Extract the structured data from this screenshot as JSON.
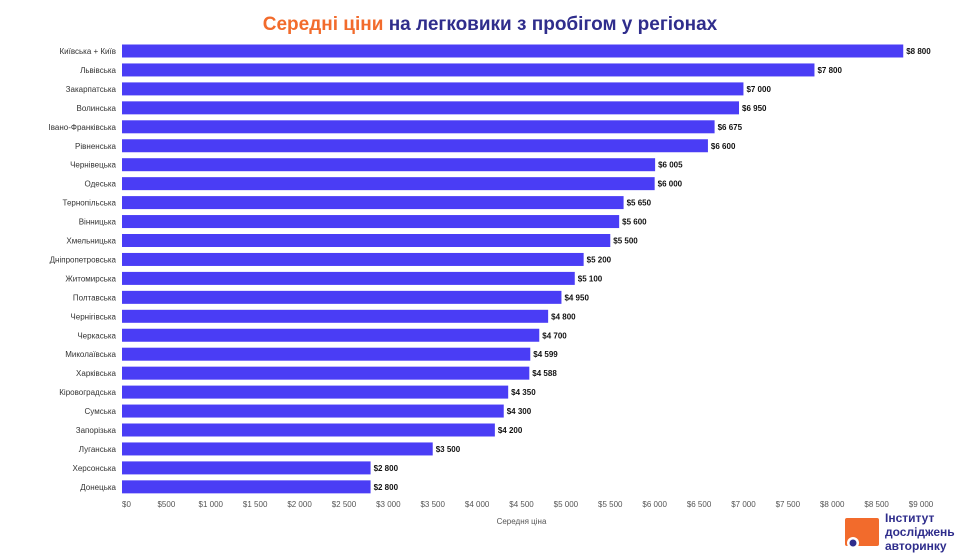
{
  "title": {
    "accent": "Середні ціни",
    "rest": " на легковики з пробігом у регіонах"
  },
  "logo": {
    "line1": "Інститут",
    "line2": "досліджень",
    "line3": "авторинку"
  },
  "colors": {
    "bar": "#4a3df5",
    "title_main": "#2f2d8c",
    "title_accent": "#f26b2c",
    "logo_orange": "#f26b2c",
    "logo_navy": "#2f2d8c"
  },
  "chart_data": {
    "type": "bar",
    "orientation": "horizontal",
    "title": "Середні ціни на легковики з пробігом у регіонах",
    "xlabel": "Середня ціна",
    "ylabel": "",
    "xlim": [
      0,
      9000
    ],
    "grid": false,
    "legend": "none",
    "categories": [
      "Київська + Київ",
      "Львівська",
      "Закарпатська",
      "Волинська",
      "Івано-Франківська",
      "Рівненська",
      "Чернівецька",
      "Одеська",
      "Тернопільська",
      "Вінницька",
      "Хмельницька",
      "Дніпропетровська",
      "Житомирська",
      "Полтавська",
      "Чернігівська",
      "Черкаська",
      "Миколаївська",
      "Харківська",
      "Кіровоградська",
      "Сумська",
      "Запорізька",
      "Луганська",
      "Херсонська",
      "Донецька"
    ],
    "values": [
      8800,
      7800,
      7000,
      6950,
      6675,
      6600,
      6005,
      6000,
      5650,
      5600,
      5500,
      5200,
      5100,
      4950,
      4800,
      4700,
      4599,
      4588,
      4350,
      4300,
      4200,
      3500,
      2800,
      2800
    ],
    "value_labels": [
      "$8 800",
      "$7 800",
      "$7 000",
      "$6 950",
      "$6 675",
      "$6 600",
      "$6 005",
      "$6 000",
      "$5 650",
      "$5 600",
      "$5 500",
      "$5 200",
      "$5 100",
      "$4 950",
      "$4 800",
      "$4 700",
      "$4 599",
      "$4 588",
      "$4 350",
      "$4 300",
      "$4 200",
      "$3 500",
      "$2 800",
      "$2 800"
    ],
    "x_ticks": [
      0,
      500,
      1000,
      1500,
      2000,
      2500,
      3000,
      3500,
      4000,
      4500,
      5000,
      5500,
      6000,
      6500,
      7000,
      7500,
      8000,
      8500,
      9000
    ],
    "x_tick_labels": [
      "$0",
      "$500",
      "$1 000",
      "$1 500",
      "$2 000",
      "$2 500",
      "$3 000",
      "$3 500",
      "$4 000",
      "$4 500",
      "$5 000",
      "$5 500",
      "$6 000",
      "$6 500",
      "$7 000",
      "$7 500",
      "$8 000",
      "$8 500",
      "$9 000"
    ]
  }
}
